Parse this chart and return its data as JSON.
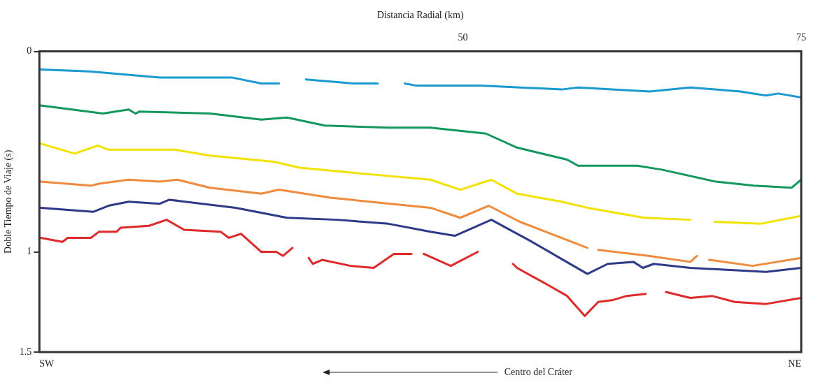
{
  "chart_data": {
    "type": "line",
    "xlabel": "Distancia Radial (km)",
    "ylabel": "Doble Tiempo de Viaje (s)",
    "xlim": [
      18.7,
      75
    ],
    "xticks": [
      50,
      75
    ],
    "ylim": [
      1.5,
      0
    ],
    "yticks": [
      0,
      1,
      1.5
    ],
    "grid": false,
    "legend": false,
    "marker": "none",
    "line_style": "solid",
    "annotations": [
      "SW",
      "NE",
      "Centro del Cráter"
    ],
    "series": [
      {
        "color": "#1a9ad0",
        "x": [
          18.8,
          22.4,
          27.6,
          32.9,
          35.1,
          36.4,
          37.4,
          38.4,
          41.9,
          43.7,
          44.8,
          45.7,
          46.5,
          51.3,
          57.3,
          58.5,
          63.8,
          66.8,
          70.5,
          72.4,
          73.3,
          75.0
        ],
        "values": [
          0.09,
          0.1,
          0.13,
          0.13,
          0.16,
          0.16,
          null,
          0.14,
          0.16,
          0.16,
          null,
          0.16,
          0.17,
          0.17,
          0.19,
          0.18,
          0.2,
          0.18,
          0.2,
          0.22,
          0.21,
          0.23
        ]
      },
      {
        "color": "#14985e",
        "x": [
          18.8,
          23.4,
          25.3,
          25.8,
          26.1,
          31.3,
          35.1,
          37.0,
          39.8,
          44.5,
          47.6,
          51.7,
          54.0,
          57.7,
          58.5,
          62.9,
          64.7,
          68.7,
          71.5,
          74.3,
          75.0
        ],
        "values": [
          0.27,
          0.31,
          0.29,
          0.31,
          0.3,
          0.31,
          0.34,
          0.33,
          0.37,
          0.38,
          0.38,
          0.41,
          0.48,
          0.54,
          0.57,
          0.57,
          0.59,
          0.65,
          0.67,
          0.68,
          0.64
        ]
      },
      {
        "color": "#f2e200",
        "x": [
          18.8,
          21.3,
          23.0,
          23.8,
          28.7,
          31.3,
          36.0,
          37.9,
          42.6,
          47.6,
          49.8,
          52.1,
          54.0,
          57.3,
          59.2,
          63.4,
          66.8,
          67.7,
          68.6,
          72.0,
          75.0
        ],
        "values": [
          0.46,
          0.51,
          0.47,
          0.49,
          0.49,
          0.52,
          0.55,
          0.58,
          0.61,
          0.64,
          0.69,
          0.64,
          0.71,
          0.75,
          0.78,
          0.83,
          0.84,
          null,
          0.85,
          0.86,
          0.82
        ]
      },
      {
        "color": "#f08a3c",
        "x": [
          18.8,
          22.5,
          23.1,
          25.3,
          27.6,
          28.9,
          31.3,
          35.1,
          36.4,
          40.2,
          47.6,
          49.8,
          51.9,
          54.2,
          59.2,
          59.6,
          60.0,
          63.7,
          66.8,
          67.3,
          67.7,
          68.2,
          71.4,
          75.0
        ],
        "values": [
          0.65,
          0.67,
          0.66,
          0.64,
          0.65,
          0.64,
          0.68,
          0.71,
          0.69,
          0.73,
          0.78,
          0.83,
          0.77,
          0.85,
          0.98,
          null,
          0.99,
          1.02,
          1.05,
          1.02,
          null,
          1.04,
          1.07,
          1.03
        ]
      },
      {
        "color": "#2e3a87",
        "x": [
          18.8,
          22.7,
          23.8,
          25.3,
          27.6,
          28.3,
          33.2,
          37.0,
          40.7,
          44.5,
          47.6,
          49.4,
          52.1,
          55.1,
          59.2,
          60.7,
          62.6,
          63.3,
          64.1,
          66.8,
          72.4,
          75.0
        ],
        "values": [
          0.78,
          0.8,
          0.77,
          0.75,
          0.76,
          0.74,
          0.78,
          0.83,
          0.84,
          0.86,
          0.9,
          0.92,
          0.84,
          0.95,
          1.11,
          1.06,
          1.05,
          1.08,
          1.06,
          1.08,
          1.1,
          1.08
        ]
      },
      {
        "color": "#de2a2a",
        "x": [
          18.8,
          20.4,
          20.8,
          22.5,
          23.1,
          24.4,
          24.7,
          26.8,
          28.1,
          29.4,
          32.1,
          32.7,
          33.6,
          35.1,
          36.2,
          36.7,
          37.4,
          38.0,
          38.6,
          38.9,
          39.6,
          41.7,
          43.4,
          44.9,
          46.2,
          46.7,
          47.1,
          49.1,
          51.1,
          52.4,
          53.7,
          54.0,
          56.4,
          57.7,
          59.0,
          60.0,
          61.1,
          62.1,
          63.5,
          64.2,
          65.0,
          66.8,
          68.4,
          70.1,
          72.4,
          75.0
        ],
        "values": [
          0.93,
          0.95,
          0.93,
          0.93,
          0.9,
          0.9,
          0.88,
          0.87,
          0.84,
          0.89,
          0.9,
          0.93,
          0.91,
          1.0,
          1.0,
          1.02,
          0.98,
          null,
          1.03,
          1.06,
          1.04,
          1.07,
          1.08,
          1.01,
          1.01,
          null,
          1.01,
          1.07,
          1.0,
          null,
          1.06,
          1.08,
          1.17,
          1.22,
          1.32,
          1.25,
          1.24,
          1.22,
          1.21,
          null,
          1.2,
          1.23,
          1.22,
          1.25,
          1.26,
          1.23
        ]
      }
    ]
  }
}
